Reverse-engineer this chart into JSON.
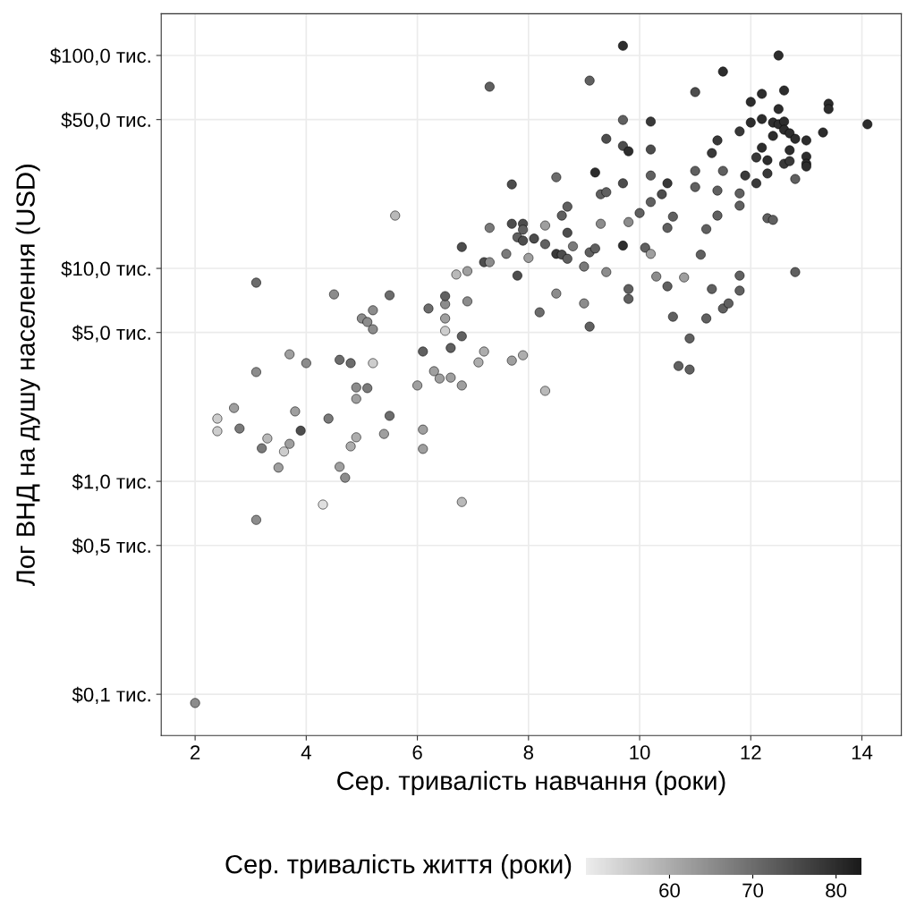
{
  "chart_data": {
    "type": "scatter",
    "xlabel": "Сер. тривалість навчання (роки)",
    "ylabel": "Лог ВНД на душу населення (USD)",
    "clabel": "Сер. тривалість життя (роки)",
    "log": "y",
    "grid": true,
    "marker": "circle",
    "xlim": [
      1.39,
      14.71
    ],
    "xticks": [
      2,
      4,
      6,
      8,
      10,
      12,
      14
    ],
    "ylim": [
      0.064,
      157
    ],
    "yticks": [
      {
        "value": 0.1,
        "label": "$0,1 тис."
      },
      {
        "value": 0.5,
        "label": "$0,5 тис."
      },
      {
        "value": 1,
        "label": "$1,0 тис."
      },
      {
        "value": 5,
        "label": "$5,0 тис."
      },
      {
        "value": 10,
        "label": "$10,0 тис."
      },
      {
        "value": 50,
        "label": "$50,0 тис."
      },
      {
        "value": 100,
        "label": "$100,0 тис."
      }
    ],
    "clim": [
      50,
      83
    ],
    "cticks": [
      60,
      70,
      80
    ],
    "series": [
      {
        "color": "#000000",
        "x": [
          2.0,
          2.4,
          2.4,
          2.7,
          2.8,
          3.1,
          3.1,
          3.1,
          3.2,
          3.3,
          3.5,
          3.6,
          3.7,
          3.7,
          3.8,
          3.9,
          4.0,
          4.3,
          4.4,
          4.5,
          4.6,
          4.6,
          4.7,
          4.8,
          4.8,
          4.9,
          4.9,
          4.9,
          5.0,
          5.1,
          5.1,
          5.2,
          5.2,
          5.2,
          5.4,
          5.5,
          5.5,
          5.6,
          6.0,
          6.1,
          6.1,
          6.1,
          6.2,
          6.3,
          6.4,
          6.5,
          6.5,
          6.5,
          6.5,
          6.6,
          6.6,
          6.7,
          6.8,
          6.8,
          6.8,
          6.8,
          6.9,
          6.9,
          7.1,
          7.2,
          7.2,
          7.3,
          7.3,
          7.3,
          7.6,
          7.7,
          7.7,
          7.7,
          7.8,
          7.8,
          7.9,
          7.9,
          7.9,
          7.9,
          8.0,
          8.1,
          8.2,
          8.3,
          8.3,
          8.3,
          8.5,
          8.5,
          8.5,
          8.6,
          8.6,
          8.7,
          8.7,
          8.7,
          8.8,
          9.0,
          9.0,
          9.1,
          9.1,
          9.1,
          9.2,
          9.2,
          9.3,
          9.3,
          9.4,
          9.4,
          9.4,
          9.7,
          9.7,
          9.7,
          9.7,
          9.7,
          9.8,
          9.8,
          9.8,
          9.8,
          10.0,
          10.1,
          10.2,
          10.2,
          10.2,
          10.2,
          10.2,
          10.3,
          10.4,
          10.5,
          10.5,
          10.5,
          10.6,
          10.6,
          10.7,
          10.8,
          10.9,
          10.9,
          11.0,
          11.0,
          11.0,
          11.1,
          11.2,
          11.2,
          11.3,
          11.3,
          11.4,
          11.4,
          11.4,
          11.5,
          11.5,
          11.5,
          11.6,
          11.8,
          11.8,
          11.8,
          11.8,
          11.8,
          11.9,
          12.0,
          12.0,
          12.1,
          12.1,
          12.2,
          12.2,
          12.2,
          12.3,
          12.3,
          12.3,
          12.4,
          12.4,
          12.4,
          12.5,
          12.5,
          12.5,
          12.6,
          12.6,
          12.6,
          12.6,
          12.7,
          12.7,
          12.7,
          12.8,
          12.8,
          12.8,
          13.0,
          13.0,
          13.0,
          13.0,
          13.3,
          13.4,
          13.4,
          14.1
        ],
        "values": [
          0.091,
          1.97,
          1.72,
          2.21,
          1.77,
          8.57,
          3.26,
          0.659,
          1.43,
          1.59,
          1.16,
          1.38,
          3.95,
          1.5,
          2.13,
          1.73,
          3.59,
          0.778,
          1.97,
          7.55,
          3.72,
          1.17,
          1.04,
          3.59,
          1.46,
          1.61,
          2.76,
          2.44,
          5.82,
          5.6,
          2.74,
          6.36,
          5.18,
          3.59,
          1.67,
          7.48,
          2.03,
          17.7,
          2.82,
          4.07,
          1.75,
          1.42,
          6.48,
          3.29,
          3.04,
          5.82,
          6.79,
          7.41,
          5.09,
          4.23,
          3.07,
          9.36,
          12.6,
          4.8,
          2.82,
          0.8,
          9.71,
          7.0,
          3.62,
          4.07,
          10.7,
          71.3,
          15.5,
          10.7,
          11.7,
          24.8,
          16.2,
          3.69,
          14.0,
          9.25,
          16.2,
          15.2,
          13.5,
          3.91,
          11.2,
          13.8,
          6.22,
          15.9,
          13.0,
          2.66,
          26.8,
          11.7,
          7.62,
          17.7,
          11.6,
          19.5,
          14.7,
          11.1,
          12.7,
          10.2,
          6.85,
          76.2,
          11.9,
          5.33,
          28.2,
          12.4,
          22.3,
          16.2,
          40.6,
          22.8,
          9.61,
          111,
          49.8,
          37.6,
          25.1,
          12.8,
          35.5,
          16.5,
          8.0,
          7.19,
          18.2,
          12.5,
          48.9,
          36.2,
          27.3,
          20.5,
          11.7,
          9.16,
          22.3,
          25.1,
          15.5,
          8.24,
          17.5,
          5.93,
          3.48,
          9.07,
          4.69,
          3.35,
          67.3,
          28.7,
          24.1,
          11.6,
          15.3,
          5.82,
          34.8,
          8.0,
          39.9,
          23.2,
          17.7,
          84.0,
          28.7,
          6.48,
          6.85,
          44.0,
          22.5,
          19.7,
          9.25,
          7.86,
          27.3,
          60.5,
          48.4,
          33.2,
          25.1,
          66.0,
          50.3,
          36.9,
          32.2,
          27.9,
          17.2,
          48.4,
          41.9,
          16.9,
          100,
          56.0,
          47.5,
          68.5,
          48.9,
          44.8,
          31.0,
          43.1,
          35.9,
          31.9,
          40.6,
          26.3,
          9.61,
          39.9,
          33.5,
          31.0,
          30.1,
          43.5,
          59.3,
          56.0,
          47.5
        ],
        "cvalues": [
          65,
          55,
          55,
          62,
          68,
          70,
          65,
          65,
          68,
          58,
          62,
          55,
          62,
          62,
          62,
          75,
          65,
          52,
          68,
          65,
          70,
          62,
          65,
          70,
          60,
          60,
          65,
          62,
          65,
          65,
          68,
          65,
          65,
          55,
          62,
          70,
          70,
          58,
          62,
          72,
          62,
          62,
          70,
          62,
          62,
          62,
          65,
          72,
          55,
          72,
          62,
          58,
          75,
          72,
          62,
          58,
          62,
          65,
          60,
          60,
          75,
          72,
          68,
          65,
          68,
          75,
          75,
          62,
          72,
          75,
          75,
          72,
          75,
          60,
          62,
          75,
          70,
          62,
          72,
          58,
          70,
          78,
          65,
          72,
          75,
          72,
          75,
          72,
          68,
          68,
          65,
          72,
          72,
          72,
          80,
          72,
          72,
          65,
          75,
          72,
          65,
          80,
          72,
          75,
          75,
          80,
          80,
          65,
          72,
          72,
          72,
          72,
          78,
          75,
          72,
          72,
          62,
          65,
          75,
          78,
          72,
          72,
          72,
          72,
          72,
          62,
          72,
          72,
          75,
          72,
          72,
          72,
          72,
          72,
          78,
          72,
          78,
          72,
          72,
          80,
          72,
          72,
          72,
          78,
          72,
          72,
          72,
          72,
          78,
          80,
          80,
          78,
          78,
          80,
          80,
          80,
          80,
          78,
          72,
          80,
          80,
          72,
          80,
          80,
          80,
          80,
          80,
          80,
          78,
          80,
          80,
          78,
          80,
          72,
          72,
          80,
          80,
          80,
          80,
          80,
          80,
          80,
          80
        ]
      }
    ]
  }
}
